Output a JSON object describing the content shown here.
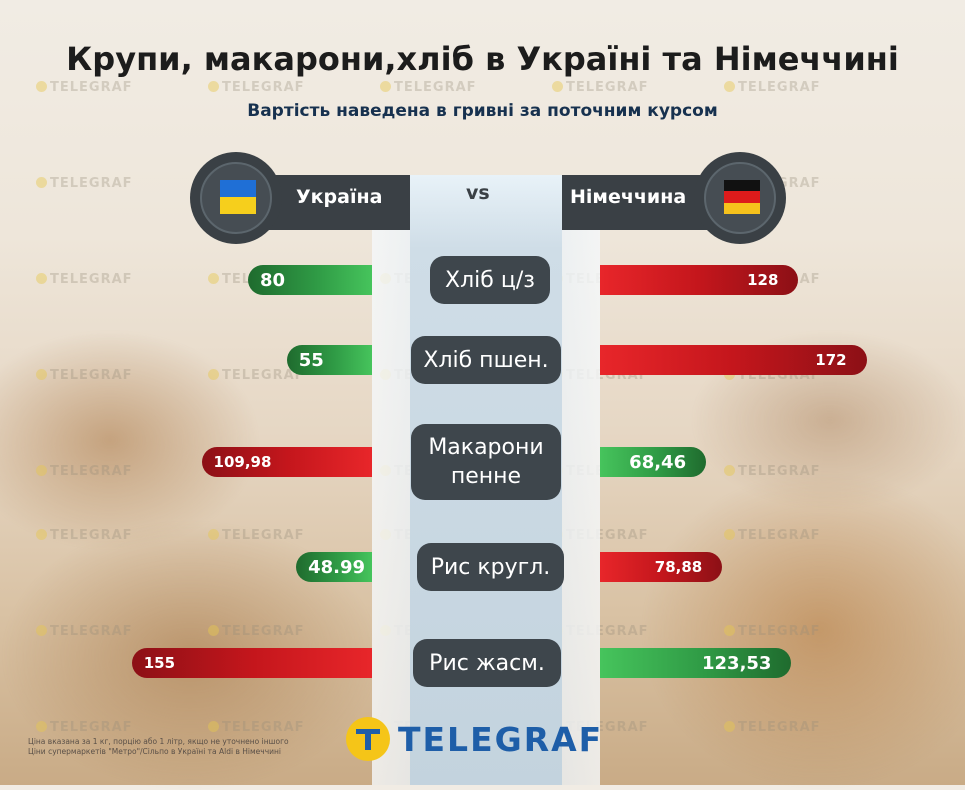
{
  "chart_data": {
    "type": "bar",
    "title": "Крупи, макарони,хліб в Україні та Німеччині",
    "subtitle": "Вартість наведена в гривні за поточним курсом",
    "vs_label": "vs",
    "categories": [
      "Хліб ц/з",
      "Хліб пшен.",
      "Макарони пенне",
      "Рис кругл.",
      "Рис жасм."
    ],
    "series": [
      {
        "name": "Україна",
        "values": [
          80,
          55,
          109.98,
          48.99,
          155
        ],
        "labels": [
          "80",
          "55",
          "109,98",
          "48.99",
          "155"
        ],
        "colors": [
          "green",
          "green",
          "red",
          "green",
          "red"
        ]
      },
      {
        "name": "Німеччина",
        "values": [
          128,
          172,
          68.46,
          78.88,
          123.53
        ],
        "labels": [
          "128",
          "172",
          "68,46",
          "78,88",
          "123,53"
        ],
        "colors": [
          "red",
          "red",
          "green",
          "red",
          "green"
        ]
      }
    ],
    "xlim": [
      0,
      180
    ]
  },
  "colors": {
    "cheaper": "#2f9a45",
    "pricier": "#c4161c",
    "header": "#3a4045",
    "logo_yellow": "#f5c518",
    "logo_blue": "#1e5ea8"
  },
  "footnote": {
    "line1": "Ціна вказана за 1 кг, порцію або 1 літр, якщо не уточнено іншого",
    "line2": "Ціни супермаркетів \"Метро\"/Сільпо в Україні та Aldi в Німеччині"
  },
  "logo": {
    "text": "TELEGRAF",
    "icon": "telegraf-t-icon"
  },
  "watermark": "TELEGRAF"
}
